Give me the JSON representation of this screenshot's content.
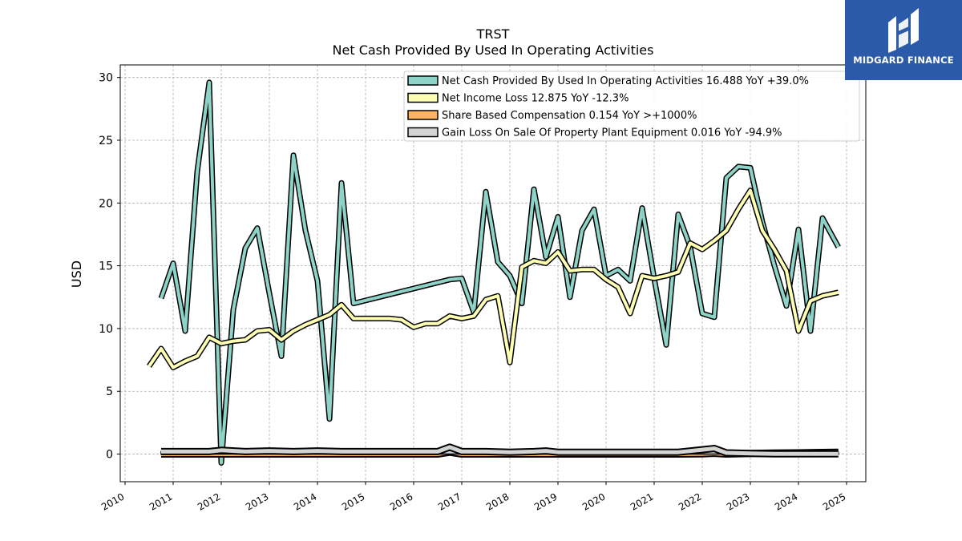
{
  "brand": {
    "name": "MIDGARD FINANCE",
    "bg_color": "#2b5aa8"
  },
  "chart_data": {
    "type": "line",
    "title": "TRST",
    "subtitle": "Net Cash Provided By Used In Operating Activities",
    "xlabel": "",
    "ylabel": "USD",
    "xlim": [
      2009.9,
      2025.4
    ],
    "ylim": [
      -2.2,
      31
    ],
    "x_ticks": [
      "2010",
      "2011",
      "2012",
      "2013",
      "2014",
      "2015",
      "2016",
      "2017",
      "2018",
      "2019",
      "2020",
      "2021",
      "2022",
      "2023",
      "2024",
      "2025"
    ],
    "y_ticks": [
      "0",
      "5",
      "10",
      "15",
      "20",
      "25",
      "30"
    ],
    "grid": true,
    "legend_position": "top-right",
    "series": [
      {
        "name": "Net Cash Provided By Used In Operating Activities",
        "legend_label": "Net Cash Provided By Used In Operating Activities  16.488 YoY +39.0%",
        "color": "#8dd3c7",
        "points": [
          [
            2010.75,
            12.4
          ],
          [
            2011.0,
            15.2
          ],
          [
            2011.25,
            9.8
          ],
          [
            2011.5,
            22.5
          ],
          [
            2011.75,
            29.6
          ],
          [
            2012.0,
            -0.7
          ],
          [
            2012.25,
            11.5
          ],
          [
            2012.5,
            16.4
          ],
          [
            2012.75,
            18.0
          ],
          [
            2013.0,
            12.8
          ],
          [
            2013.25,
            7.8
          ],
          [
            2013.5,
            23.8
          ],
          [
            2013.75,
            17.8
          ],
          [
            2014.0,
            13.8
          ],
          [
            2014.25,
            2.8
          ],
          [
            2014.5,
            21.6
          ],
          [
            2014.75,
            12.0
          ],
          [
            2016.75,
            13.9
          ],
          [
            2017.0,
            14.0
          ],
          [
            2017.25,
            11.3
          ],
          [
            2017.5,
            20.9
          ],
          [
            2017.75,
            15.3
          ],
          [
            2018.0,
            14.2
          ],
          [
            2018.25,
            12.0
          ],
          [
            2018.5,
            21.1
          ],
          [
            2018.75,
            15.7
          ],
          [
            2019.0,
            18.9
          ],
          [
            2019.25,
            12.5
          ],
          [
            2019.5,
            17.8
          ],
          [
            2019.75,
            19.5
          ],
          [
            2020.0,
            14.2
          ],
          [
            2020.25,
            14.7
          ],
          [
            2020.5,
            13.8
          ],
          [
            2020.75,
            19.6
          ],
          [
            2021.0,
            14.0
          ],
          [
            2021.25,
            8.7
          ],
          [
            2021.5,
            19.1
          ],
          [
            2021.75,
            16.5
          ],
          [
            2022.0,
            11.2
          ],
          [
            2022.25,
            10.9
          ],
          [
            2022.5,
            22.0
          ],
          [
            2022.75,
            22.9
          ],
          [
            2023.0,
            22.8
          ],
          [
            2023.25,
            18.5
          ],
          [
            2023.5,
            15.0
          ],
          [
            2023.75,
            11.8
          ],
          [
            2024.0,
            17.9
          ],
          [
            2024.25,
            9.8
          ],
          [
            2024.5,
            18.8
          ],
          [
            2024.83,
            16.49
          ]
        ]
      },
      {
        "name": "Net Income Loss",
        "legend_label": "Net Income Loss  12.875 YoY -12.3%",
        "color": "#ffffb3",
        "points": [
          [
            2010.5,
            7.0
          ],
          [
            2010.75,
            8.4
          ],
          [
            2011.0,
            6.9
          ],
          [
            2011.25,
            7.4
          ],
          [
            2011.5,
            7.8
          ],
          [
            2011.75,
            9.3
          ],
          [
            2012.0,
            8.8
          ],
          [
            2012.25,
            9.0
          ],
          [
            2012.5,
            9.1
          ],
          [
            2012.75,
            9.8
          ],
          [
            2013.0,
            9.9
          ],
          [
            2013.25,
            9.1
          ],
          [
            2013.5,
            9.8
          ],
          [
            2013.75,
            10.3
          ],
          [
            2014.0,
            10.7
          ],
          [
            2014.25,
            11.1
          ],
          [
            2014.5,
            11.9
          ],
          [
            2014.75,
            10.8
          ],
          [
            2015.0,
            10.8
          ],
          [
            2015.25,
            10.8
          ],
          [
            2015.5,
            10.8
          ],
          [
            2015.75,
            10.7
          ],
          [
            2016.0,
            10.1
          ],
          [
            2016.25,
            10.4
          ],
          [
            2016.5,
            10.4
          ],
          [
            2016.75,
            11.0
          ],
          [
            2017.0,
            10.8
          ],
          [
            2017.25,
            11.0
          ],
          [
            2017.5,
            12.3
          ],
          [
            2017.75,
            12.6
          ],
          [
            2018.0,
            7.3
          ],
          [
            2018.25,
            14.9
          ],
          [
            2018.5,
            15.4
          ],
          [
            2018.75,
            15.2
          ],
          [
            2019.0,
            16.1
          ],
          [
            2019.25,
            14.6
          ],
          [
            2019.5,
            14.7
          ],
          [
            2019.75,
            14.7
          ],
          [
            2020.0,
            13.9
          ],
          [
            2020.25,
            13.3
          ],
          [
            2020.5,
            11.2
          ],
          [
            2020.75,
            14.2
          ],
          [
            2021.0,
            14.0
          ],
          [
            2021.25,
            14.2
          ],
          [
            2021.5,
            14.5
          ],
          [
            2021.75,
            16.8
          ],
          [
            2022.0,
            16.3
          ],
          [
            2022.25,
            17.0
          ],
          [
            2022.5,
            17.8
          ],
          [
            2022.75,
            19.5
          ],
          [
            2023.0,
            21.0
          ],
          [
            2023.25,
            17.8
          ],
          [
            2023.5,
            16.3
          ],
          [
            2023.75,
            14.6
          ],
          [
            2024.0,
            9.8
          ],
          [
            2024.25,
            12.2
          ],
          [
            2024.5,
            12.6
          ],
          [
            2024.83,
            12.88
          ]
        ]
      },
      {
        "name": "Share Based Compensation",
        "legend_label": "Share Based Compensation  0.154 YoY >+1000%",
        "color": "#fdb462",
        "points": [
          [
            2010.75,
            0.0
          ],
          [
            2011.75,
            0.0
          ],
          [
            2012.75,
            0.0
          ],
          [
            2013.75,
            0.0
          ],
          [
            2014.75,
            0.0
          ],
          [
            2015.75,
            0.0
          ],
          [
            2016.5,
            0.0
          ],
          [
            2016.75,
            0.15
          ],
          [
            2017.0,
            0.0
          ],
          [
            2018.0,
            0.0
          ],
          [
            2019.0,
            0.0
          ],
          [
            2020.0,
            0.0
          ],
          [
            2021.0,
            0.0
          ],
          [
            2021.5,
            0.0
          ],
          [
            2022.0,
            0.02
          ],
          [
            2022.25,
            0.06
          ],
          [
            2022.5,
            0.0
          ],
          [
            2023.0,
            0.05
          ],
          [
            2023.5,
            0.08
          ],
          [
            2024.0,
            0.1
          ],
          [
            2024.5,
            0.13
          ],
          [
            2024.83,
            0.15
          ]
        ]
      },
      {
        "name": "Gain Loss On Sale Of Property Plant Equipment",
        "legend_label": "Gain Loss On Sale Of Property Plant Equipment  0.016 YoY -94.9%",
        "color": "#d3d3d3",
        "points": [
          [
            2010.75,
            0.2
          ],
          [
            2011.75,
            0.2
          ],
          [
            2012.0,
            0.3
          ],
          [
            2012.5,
            0.2
          ],
          [
            2013.0,
            0.25
          ],
          [
            2013.5,
            0.2
          ],
          [
            2014.0,
            0.25
          ],
          [
            2014.5,
            0.2
          ],
          [
            2015.0,
            0.2
          ],
          [
            2015.5,
            0.2
          ],
          [
            2016.0,
            0.2
          ],
          [
            2016.5,
            0.2
          ],
          [
            2016.75,
            0.55
          ],
          [
            2017.0,
            0.2
          ],
          [
            2017.5,
            0.2
          ],
          [
            2018.0,
            0.15
          ],
          [
            2018.5,
            0.2
          ],
          [
            2018.75,
            0.25
          ],
          [
            2019.0,
            0.15
          ],
          [
            2019.5,
            0.15
          ],
          [
            2020.0,
            0.15
          ],
          [
            2020.5,
            0.15
          ],
          [
            2021.0,
            0.15
          ],
          [
            2021.5,
            0.15
          ],
          [
            2022.0,
            0.35
          ],
          [
            2022.25,
            0.45
          ],
          [
            2022.5,
            0.1
          ],
          [
            2023.0,
            0.05
          ],
          [
            2023.5,
            0.02
          ],
          [
            2024.0,
            0.02
          ],
          [
            2024.5,
            0.02
          ],
          [
            2024.83,
            0.02
          ]
        ]
      }
    ]
  }
}
